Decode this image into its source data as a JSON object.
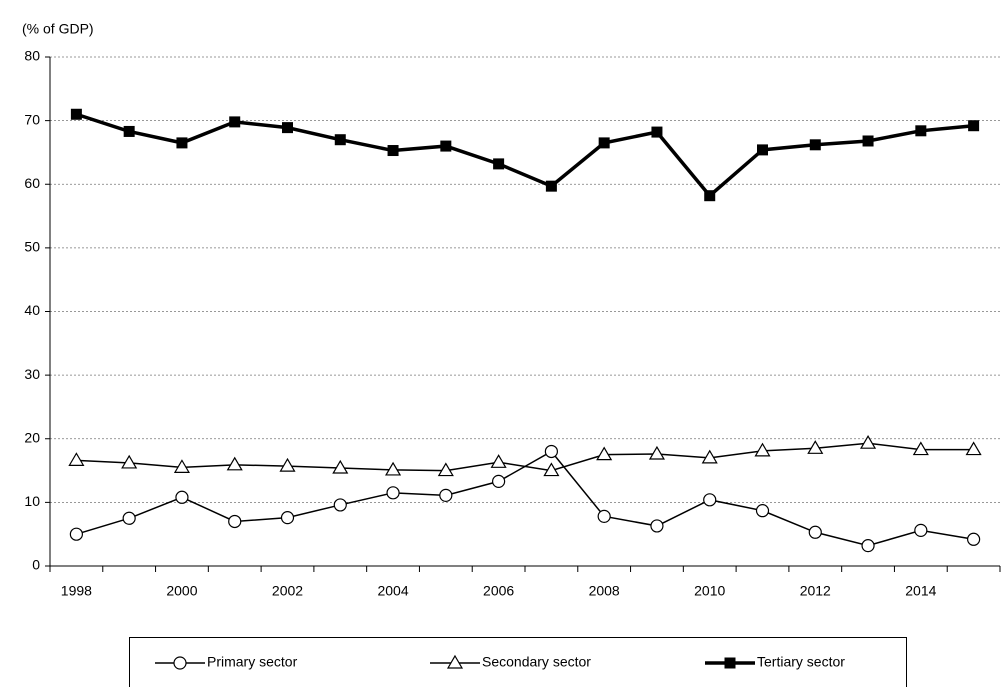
{
  "chart_data": {
    "type": "line",
    "y_label": "(% of GDP)",
    "categories": [
      "1998",
      null,
      "2000",
      null,
      "2002",
      null,
      "2004",
      null,
      "2006",
      null,
      "2008",
      null,
      "2010",
      null,
      "2012",
      null,
      "2014",
      null
    ],
    "ylim": [
      0,
      80
    ],
    "yticks": [
      0,
      10,
      20,
      30,
      40,
      50,
      60,
      70,
      80
    ],
    "grid": true,
    "series": [
      {
        "name": "Primary sector",
        "color": "#000000",
        "marker": "circle",
        "line_width": 1.5,
        "values": [
          5.0,
          7.5,
          10.8,
          7.0,
          7.6,
          9.6,
          11.5,
          11.1,
          13.3,
          18.0,
          7.8,
          6.3,
          10.4,
          8.7,
          5.3,
          3.2,
          5.6,
          4.2
        ]
      },
      {
        "name": "Secondary sector",
        "color": "#000000",
        "marker": "triangle",
        "line_width": 1.5,
        "values": [
          16.6,
          16.2,
          15.5,
          15.9,
          15.7,
          15.4,
          15.1,
          15.0,
          16.3,
          15.0,
          17.5,
          17.6,
          17.0,
          18.1,
          18.5,
          19.3,
          18.3,
          18.3
        ]
      },
      {
        "name": "Tertiary sector",
        "color": "#000000",
        "marker": "square",
        "line_width": 3.5,
        "values": [
          71.0,
          68.3,
          66.5,
          69.8,
          68.9,
          67.0,
          65.3,
          66.0,
          63.2,
          59.7,
          66.5,
          68.2,
          58.2,
          65.4,
          66.2,
          66.8,
          68.4,
          69.2
        ]
      }
    ]
  }
}
